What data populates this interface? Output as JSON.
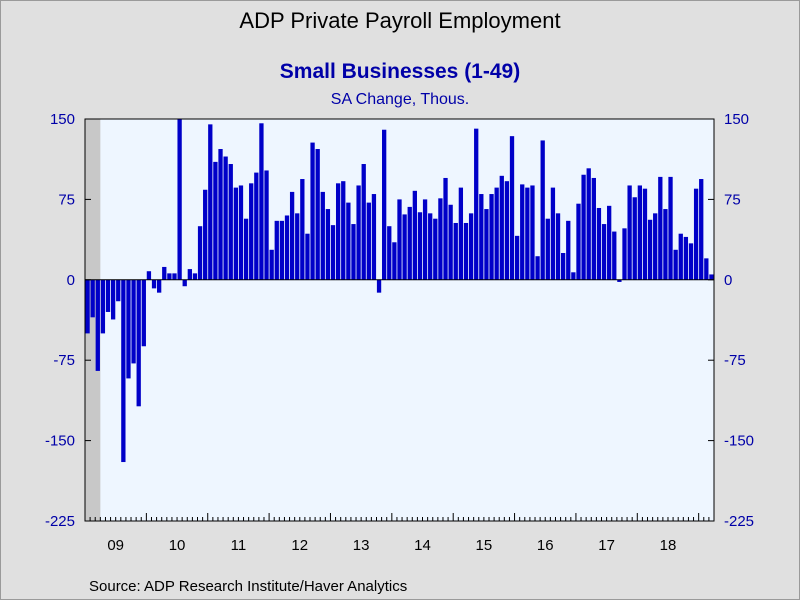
{
  "header": {
    "title": "ADP Private Payroll Employment",
    "subtitle": "Small Businesses (1-49)",
    "units": "SA Change, Thous."
  },
  "footer": {
    "source": "Source:  ADP Research Institute/Haver Analytics"
  },
  "colors": {
    "bar": "#0000c8",
    "plot_bg": "#eef6ff",
    "recession": "#c8c8c8",
    "axis_text": "#0000a8"
  },
  "chart_data": {
    "type": "bar",
    "title": "Small Businesses (1-49)",
    "ylabel": "SA Change, Thous.",
    "ylim": [
      -225,
      150
    ],
    "yticks": [
      150,
      75,
      0,
      -75,
      -150,
      -225
    ],
    "ytick_labels": [
      "150",
      "75",
      "0",
      "-75",
      "-150",
      "-225"
    ],
    "x_start": "2009-01",
    "frequency": "monthly",
    "xtick_labels": [
      "09",
      "10",
      "11",
      "12",
      "13",
      "14",
      "15",
      "16",
      "17",
      "18"
    ],
    "recession_shading": [
      "2009-01",
      "2009-06"
    ],
    "values": [
      -50,
      -35,
      -85,
      -50,
      -30,
      -37,
      -20,
      -170,
      -92,
      -78,
      -118,
      -62,
      8,
      -8,
      -12,
      12,
      6,
      6,
      150,
      -6,
      10,
      6,
      50,
      84,
      145,
      110,
      122,
      115,
      108,
      86,
      88,
      57,
      90,
      100,
      146,
      102,
      28,
      55,
      55,
      60,
      82,
      62,
      94,
      43,
      128,
      122,
      82,
      66,
      51,
      90,
      92,
      72,
      52,
      88,
      108,
      72,
      80,
      -12,
      140,
      50,
      35,
      75,
      61,
      68,
      83,
      63,
      75,
      62,
      57,
      76,
      95,
      70,
      53,
      86,
      53,
      62,
      141,
      80,
      66,
      80,
      86,
      97,
      92,
      134,
      41,
      89,
      86,
      88,
      22,
      130,
      57,
      86,
      62,
      25,
      55,
      7,
      71,
      98,
      104,
      95,
      67,
      52,
      69,
      45,
      -2,
      48,
      88,
      77,
      88,
      85,
      56,
      62,
      96,
      66,
      96,
      28,
      43,
      40,
      34,
      85,
      94,
      20,
      5
    ]
  }
}
